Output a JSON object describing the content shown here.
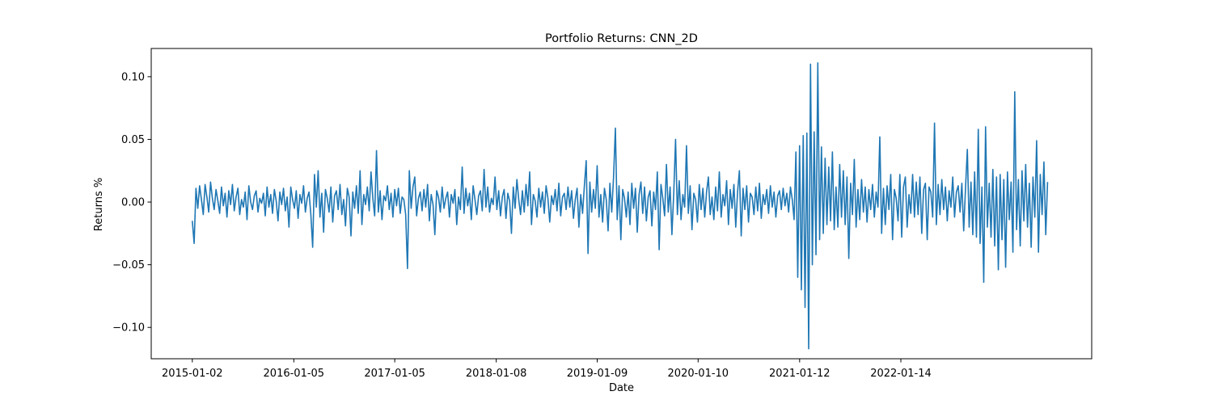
{
  "chart_data": {
    "type": "line",
    "title": "Portfolio Returns: CNN_2D",
    "xlabel": "Date",
    "ylabel": "Returns %",
    "x_tick_labels": [
      "2015-01-02",
      "2016-01-05",
      "2017-01-05",
      "2018-01-08",
      "2019-01-09",
      "2020-01-10",
      "2021-01-12",
      "2022-01-14"
    ],
    "x_range": [
      "2014-08-06",
      "2023-12-07"
    ],
    "ylim": [
      -0.125,
      0.1225
    ],
    "y_ticks": [
      -0.1,
      -0.05,
      0.0,
      0.05,
      0.1
    ],
    "y_tick_labels": [
      "−0.10",
      "−0.05",
      "0.00",
      "0.05",
      "0.10"
    ],
    "grid": false,
    "legend": "none",
    "line_color": "#1f77b4",
    "series": [
      {
        "x_start": "2015-01-02",
        "x_end": "2023-06-30",
        "values": [
          -0.015,
          -0.033,
          0.011,
          -0.005,
          0.013,
          0.002,
          -0.01,
          0.014,
          0.004,
          -0.008,
          0.016,
          0.003,
          -0.006,
          0.01,
          0.001,
          -0.009,
          0.012,
          -0.003,
          0.007,
          -0.012,
          0.009,
          -0.002,
          0.014,
          -0.007,
          0.004,
          0.011,
          -0.01,
          0.002,
          -0.004,
          0.008,
          -0.014,
          0.013,
          0.0,
          -0.006,
          0.005,
          0.009,
          -0.008,
          0.003,
          -0.001,
          0.007,
          -0.011,
          0.012,
          -0.004,
          0.006,
          -0.009,
          0.01,
          0.001,
          -0.015,
          0.008,
          -0.002,
          0.011,
          -0.007,
          0.004,
          -0.02,
          0.012,
          0.002,
          -0.005,
          0.009,
          -0.013,
          0.006,
          -0.001,
          0.013,
          -0.008,
          0.003,
          0.008,
          -0.01,
          -0.036,
          0.022,
          -0.004,
          0.025,
          -0.012,
          0.007,
          -0.024,
          0.01,
          0.003,
          -0.008,
          0.012,
          -0.016,
          0.005,
          0.009,
          -0.006,
          0.014,
          -0.01,
          0.002,
          -0.019,
          0.011,
          0.004,
          -0.027,
          0.008,
          -0.005,
          0.013,
          -0.009,
          0.025,
          -0.018,
          0.006,
          -0.002,
          0.012,
          -0.007,
          0.024,
          0.003,
          -0.011,
          0.041,
          -0.008,
          0.009,
          -0.014,
          0.005,
          0.001,
          0.013,
          -0.006,
          0.007,
          -0.012,
          0.01,
          -0.003,
          0.011,
          -0.009,
          0.004,
          0.002,
          -0.01,
          -0.053,
          0.025,
          -0.005,
          0.012,
          0.02,
          -0.011,
          0.003,
          0.008,
          -0.007,
          0.01,
          -0.004,
          0.014,
          -0.015,
          0.006,
          -0.002,
          -0.026,
          0.009,
          0.004,
          -0.008,
          0.012,
          -0.005,
          0.003,
          0.008,
          -0.012,
          0.006,
          -0.001,
          0.01,
          -0.018,
          0.004,
          -0.006,
          0.028,
          -0.009,
          0.011,
          -0.003,
          0.007,
          -0.014,
          0.013,
          0.002,
          -0.01,
          0.005,
          0.009,
          -0.007,
          0.026,
          -0.004,
          0.012,
          -0.008,
          0.003,
          -0.002,
          0.02,
          -0.006,
          0.009,
          -0.011,
          0.004,
          0.01,
          -0.013,
          0.007,
          0.001,
          -0.025,
          0.012,
          -0.005,
          0.018,
          0.002,
          -0.01,
          0.009,
          -0.008,
          0.014,
          -0.003,
          0.024,
          -0.018,
          0.006,
          0.001,
          -0.012,
          0.011,
          -0.004,
          0.008,
          -0.009,
          0.013,
          0.003,
          -0.016,
          0.005,
          -0.002,
          0.01,
          -0.007,
          0.015,
          -0.011,
          0.004,
          0.007,
          -0.006,
          0.012,
          -0.004,
          0.009,
          -0.013,
          0.002,
          0.011,
          -0.02,
          0.006,
          -0.009,
          0.013,
          0.033,
          -0.041,
          0.016,
          -0.008,
          0.01,
          -0.005,
          0.029,
          -0.012,
          0.006,
          -0.016,
          0.011,
          0.002,
          -0.023,
          0.015,
          -0.008,
          0.02,
          0.059,
          -0.014,
          0.013,
          -0.03,
          0.01,
          0.003,
          -0.012,
          0.008,
          -0.018,
          0.015,
          -0.005,
          0.011,
          -0.024,
          0.006,
          0.016,
          -0.009,
          0.012,
          -0.015,
          0.004,
          0.009,
          -0.019,
          0.008,
          -0.006,
          0.024,
          -0.038,
          0.014,
          0.003,
          -0.011,
          0.03,
          -0.008,
          0.012,
          -0.026,
          0.007,
          0.05,
          -0.01,
          0.017,
          -0.014,
          0.006,
          -0.004,
          0.045,
          -0.009,
          0.013,
          -0.022,
          0.007,
          0.002,
          -0.016,
          0.014,
          -0.006,
          0.011,
          -0.012,
          0.008,
          0.02,
          -0.01,
          0.004,
          -0.014,
          0.012,
          -0.007,
          0.024,
          -0.012,
          0.006,
          -0.003,
          0.017,
          -0.018,
          0.01,
          -0.005,
          0.014,
          -0.02,
          0.008,
          0.025,
          -0.027,
          0.011,
          -0.006,
          0.013,
          -0.016,
          0.007,
          0.004,
          -0.01,
          0.012,
          -0.007,
          0.015,
          -0.013,
          0.006,
          -0.002,
          0.01,
          -0.009,
          0.013,
          -0.004,
          0.008,
          -0.012,
          0.005,
          0.009,
          -0.006,
          0.011,
          -0.003,
          0.007,
          -0.008,
          0.012,
          0.002,
          -0.014,
          0.04,
          -0.06,
          0.045,
          -0.07,
          0.053,
          -0.084,
          0.055,
          -0.117,
          0.11,
          -0.05,
          0.056,
          -0.042,
          0.111,
          -0.03,
          0.044,
          -0.025,
          0.035,
          -0.018,
          0.028,
          -0.015,
          0.04,
          -0.022,
          0.012,
          -0.02,
          0.03,
          -0.012,
          0.025,
          -0.018,
          0.02,
          -0.045,
          0.015,
          -0.01,
          0.034,
          -0.02,
          0.01,
          -0.014,
          0.018,
          -0.008,
          0.012,
          -0.016,
          0.01,
          -0.006,
          0.014,
          -0.012,
          0.008,
          -0.004,
          0.052,
          -0.025,
          0.011,
          -0.018,
          0.013,
          -0.006,
          0.022,
          -0.03,
          0.01,
          0.003,
          -0.015,
          0.022,
          -0.028,
          0.012,
          0.02,
          -0.02,
          0.006,
          -0.009,
          0.022,
          -0.012,
          0.016,
          -0.01,
          0.02,
          -0.025,
          0.01,
          0.015,
          -0.03,
          0.012,
          0.008,
          -0.012,
          0.063,
          -0.018,
          0.014,
          -0.01,
          0.018,
          -0.006,
          0.012,
          -0.015,
          0.009,
          -0.004,
          0.02,
          -0.012,
          0.008,
          0.013,
          -0.008,
          0.015,
          -0.023,
          0.011,
          0.042,
          -0.02,
          0.016,
          -0.026,
          0.024,
          -0.028,
          0.058,
          -0.033,
          0.012,
          -0.064,
          0.06,
          -0.02,
          0.015,
          -0.028,
          0.026,
          -0.035,
          0.02,
          -0.054,
          0.022,
          -0.03,
          0.018,
          -0.052,
          0.024,
          -0.014,
          0.016,
          -0.04,
          0.088,
          -0.022,
          0.018,
          -0.035,
          0.025,
          -0.015,
          0.03,
          -0.02,
          0.015,
          -0.036,
          0.02,
          -0.012,
          0.049,
          -0.04,
          0.022,
          -0.01,
          0.032,
          -0.026,
          0.016
        ]
      }
    ]
  }
}
